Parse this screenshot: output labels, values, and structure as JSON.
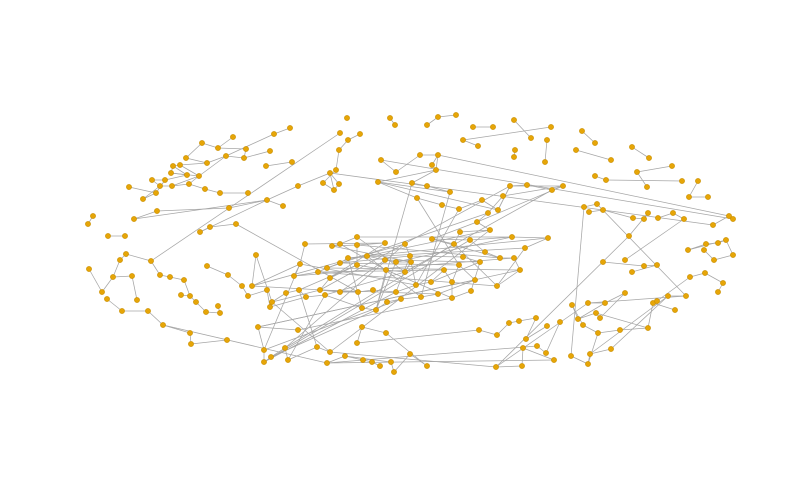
{
  "colors": {
    "background": "#ffffff",
    "node_fill": "#e6a507",
    "node_stroke": "#c98f00",
    "edge": "#a6a6a6"
  },
  "graph": {
    "type": "network",
    "directed": true,
    "labels_shown": false
  }
}
